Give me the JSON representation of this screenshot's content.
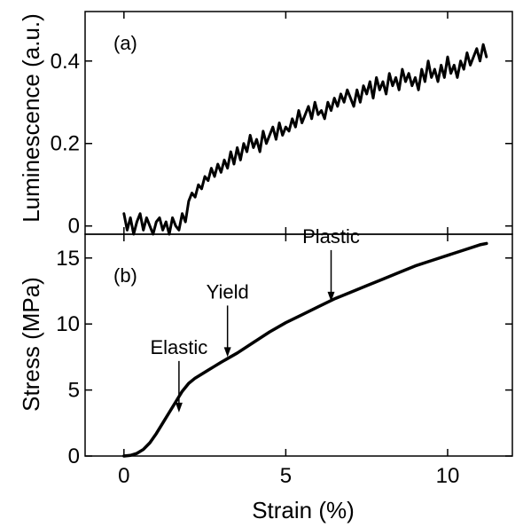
{
  "chart_data": [
    {
      "id": "a",
      "type": "line",
      "panel_label": "(a)",
      "title": "",
      "xlabel": "Strain (%)",
      "ylabel": "Luminescence (a.u.)",
      "xlim": [
        -1.2,
        12.0
      ],
      "ylim": [
        -0.02,
        0.52
      ],
      "xticks": [
        0,
        5,
        10
      ],
      "yticks": [
        0,
        0.2,
        0.4
      ],
      "ytick_labels": [
        "0",
        "0.2",
        "0.4"
      ],
      "grid": false,
      "series": [
        {
          "x": [
            0.0,
            0.1,
            0.2,
            0.3,
            0.4,
            0.5,
            0.6,
            0.7,
            0.8,
            0.9,
            1.0,
            1.1,
            1.2,
            1.3,
            1.4,
            1.5,
            1.6,
            1.7,
            1.8,
            1.9,
            2.0,
            2.1,
            2.2,
            2.3,
            2.4,
            2.5,
            2.6,
            2.7,
            2.8,
            2.9,
            3.0,
            3.1,
            3.2,
            3.3,
            3.4,
            3.5,
            3.6,
            3.7,
            3.8,
            3.9,
            4.0,
            4.1,
            4.2,
            4.3,
            4.4,
            4.5,
            4.6,
            4.7,
            4.8,
            4.9,
            5.0,
            5.1,
            5.2,
            5.3,
            5.4,
            5.5,
            5.6,
            5.7,
            5.8,
            5.9,
            6.0,
            6.1,
            6.2,
            6.3,
            6.4,
            6.5,
            6.6,
            6.7,
            6.8,
            6.9,
            7.0,
            7.1,
            7.2,
            7.3,
            7.4,
            7.5,
            7.6,
            7.7,
            7.8,
            7.9,
            8.0,
            8.1,
            8.2,
            8.3,
            8.4,
            8.5,
            8.6,
            8.7,
            8.8,
            8.9,
            9.0,
            9.1,
            9.2,
            9.3,
            9.4,
            9.5,
            9.6,
            9.7,
            9.8,
            9.9,
            10.0,
            10.1,
            10.2,
            10.3,
            10.4,
            10.5,
            10.6,
            10.7,
            10.8,
            10.9,
            11.0,
            11.1,
            11.2
          ],
          "y": [
            0.03,
            -0.01,
            0.02,
            -0.02,
            0.01,
            0.03,
            -0.01,
            0.02,
            0.0,
            -0.02,
            0.01,
            0.02,
            -0.01,
            0.01,
            -0.02,
            0.02,
            0.0,
            -0.01,
            0.03,
            0.01,
            0.06,
            0.08,
            0.07,
            0.1,
            0.09,
            0.12,
            0.11,
            0.14,
            0.12,
            0.15,
            0.13,
            0.16,
            0.14,
            0.18,
            0.15,
            0.19,
            0.16,
            0.2,
            0.18,
            0.22,
            0.19,
            0.21,
            0.18,
            0.23,
            0.2,
            0.22,
            0.24,
            0.21,
            0.25,
            0.22,
            0.24,
            0.23,
            0.26,
            0.24,
            0.28,
            0.25,
            0.27,
            0.29,
            0.26,
            0.3,
            0.27,
            0.28,
            0.26,
            0.3,
            0.28,
            0.31,
            0.29,
            0.32,
            0.3,
            0.33,
            0.31,
            0.29,
            0.33,
            0.3,
            0.34,
            0.32,
            0.35,
            0.31,
            0.36,
            0.33,
            0.35,
            0.32,
            0.37,
            0.34,
            0.36,
            0.33,
            0.38,
            0.35,
            0.37,
            0.34,
            0.36,
            0.33,
            0.38,
            0.35,
            0.4,
            0.36,
            0.38,
            0.35,
            0.39,
            0.36,
            0.41,
            0.37,
            0.39,
            0.36,
            0.4,
            0.38,
            0.42,
            0.39,
            0.41,
            0.43,
            0.4,
            0.44,
            0.41
          ]
        }
      ]
    },
    {
      "id": "b",
      "type": "line",
      "panel_label": "(b)",
      "title": "",
      "xlabel": "Strain (%)",
      "ylabel": "Stress (MPa)",
      "xlim": [
        -1.2,
        12.0
      ],
      "ylim": [
        0,
        16.8
      ],
      "xticks": [
        0,
        5,
        10
      ],
      "xtick_labels": [
        "0",
        "5",
        "10"
      ],
      "yticks": [
        0,
        5,
        10,
        15
      ],
      "ytick_labels": [
        "0",
        "5",
        "10",
        "15"
      ],
      "grid": false,
      "series": [
        {
          "x": [
            0.0,
            0.2,
            0.4,
            0.6,
            0.8,
            1.0,
            1.2,
            1.4,
            1.6,
            1.8,
            2.0,
            2.2,
            2.4,
            2.6,
            2.8,
            3.0,
            3.5,
            4.0,
            4.5,
            5.0,
            5.5,
            6.0,
            6.5,
            7.0,
            7.5,
            8.0,
            8.5,
            9.0,
            9.5,
            10.0,
            10.5,
            11.0,
            11.2
          ],
          "y": [
            0.0,
            0.05,
            0.2,
            0.5,
            1.0,
            1.7,
            2.5,
            3.3,
            4.1,
            4.9,
            5.5,
            5.9,
            6.2,
            6.5,
            6.8,
            7.1,
            7.8,
            8.6,
            9.4,
            10.1,
            10.7,
            11.3,
            11.9,
            12.4,
            12.9,
            13.4,
            13.9,
            14.4,
            14.8,
            15.2,
            15.6,
            16.0,
            16.1
          ]
        }
      ],
      "annotations": [
        {
          "text": "Elastic",
          "x": 1.7,
          "y": 3.3
        },
        {
          "text": "Yield",
          "x": 3.2,
          "y": 7.5
        },
        {
          "text": "Plastic",
          "x": 6.4,
          "y": 11.7
        }
      ]
    }
  ]
}
